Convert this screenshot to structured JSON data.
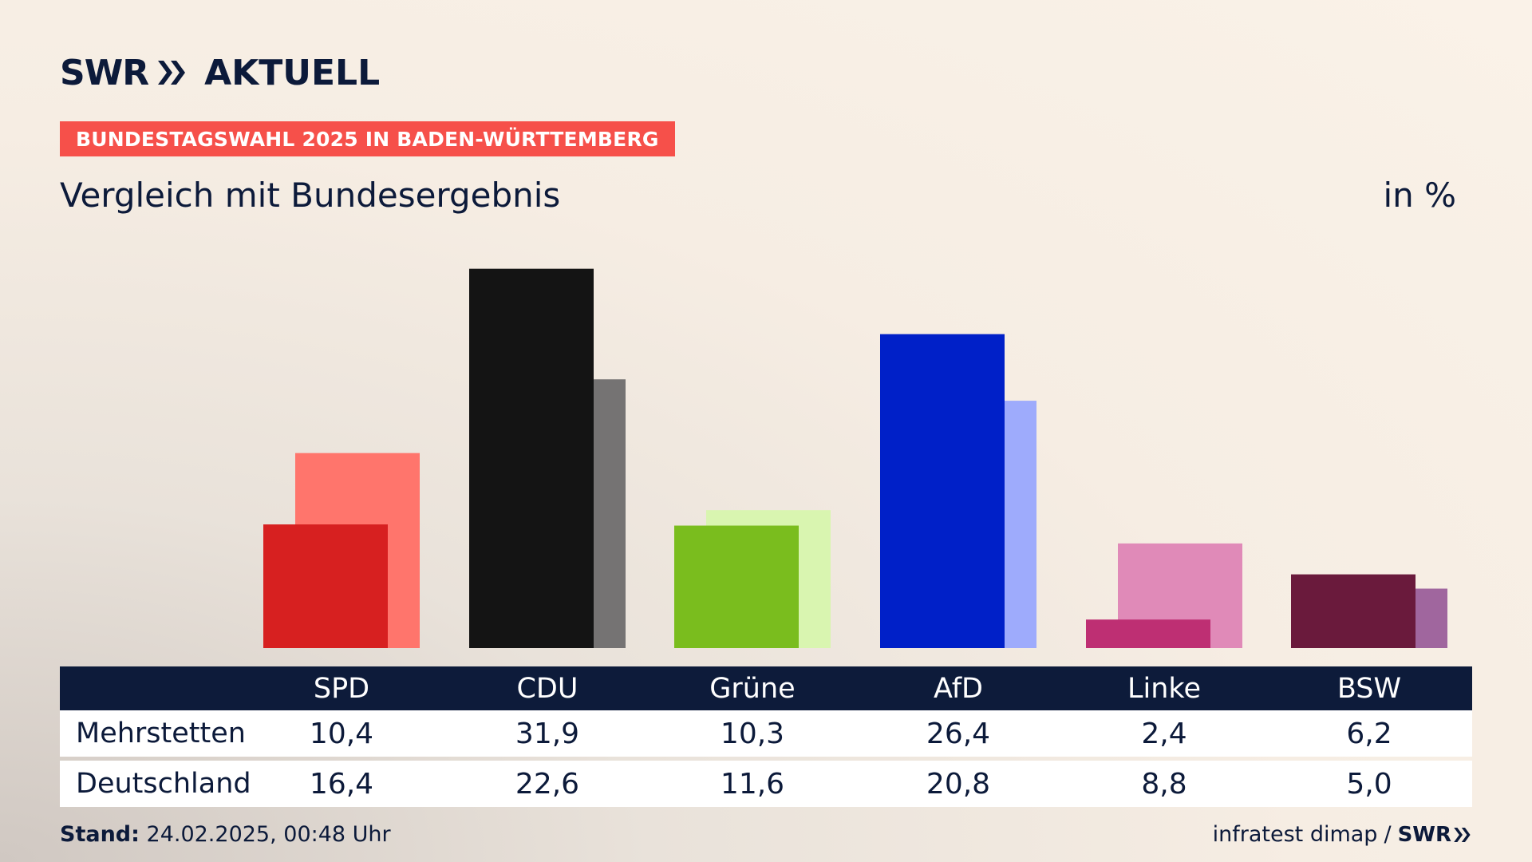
{
  "brand": {
    "logo_left": "SWR",
    "logo_right": "AKTUELL",
    "colors": {
      "navy": "#0c1a3a",
      "tag_red": "#f6504a"
    }
  },
  "header": {
    "tag": "BUNDESTAGSWAHL 2025 IN BADEN-WÜRTTEMBERG",
    "subtitle": "Vergleich mit Bundesergebnis",
    "unit": "in %"
  },
  "chart_data": {
    "type": "bar",
    "categories": [
      "SPD",
      "CDU",
      "Grüne",
      "AfD",
      "Linke",
      "BSW"
    ],
    "series": [
      {
        "name": "Mehrstetten",
        "values": [
          10.4,
          31.9,
          10.3,
          26.4,
          2.4,
          6.2
        ]
      },
      {
        "name": "Deutschland",
        "values": [
          16.4,
          22.6,
          11.6,
          20.8,
          8.8,
          5.0
        ]
      }
    ],
    "colors_primary": [
      "#d72020",
      "#141414",
      "#7abd1e",
      "#0020c8",
      "#be2f73",
      "#6a1a3c"
    ],
    "colors_secondary": [
      "#ff756c",
      "#757373",
      "#d9f5b0",
      "#9eabfc",
      "#e08ab8",
      "#a0669e"
    ],
    "ylim": [
      0,
      32
    ]
  },
  "table": {
    "headers": [
      "SPD",
      "CDU",
      "Grüne",
      "AfD",
      "Linke",
      "BSW"
    ],
    "rows": [
      {
        "label": "Mehrstetten",
        "values": [
          "10,4",
          "31,9",
          "10,3",
          "26,4",
          "2,4",
          "6,2"
        ]
      },
      {
        "label": "Deutschland",
        "values": [
          "16,4",
          "22,6",
          "11,6",
          "20,8",
          "8,8",
          "5,0"
        ]
      }
    ]
  },
  "footer": {
    "stand_label": "Stand:",
    "stand_value": "24.02.2025, 00:48 Uhr",
    "source": "infratest dimap",
    "separator": "/",
    "source_logo": "SWR"
  }
}
